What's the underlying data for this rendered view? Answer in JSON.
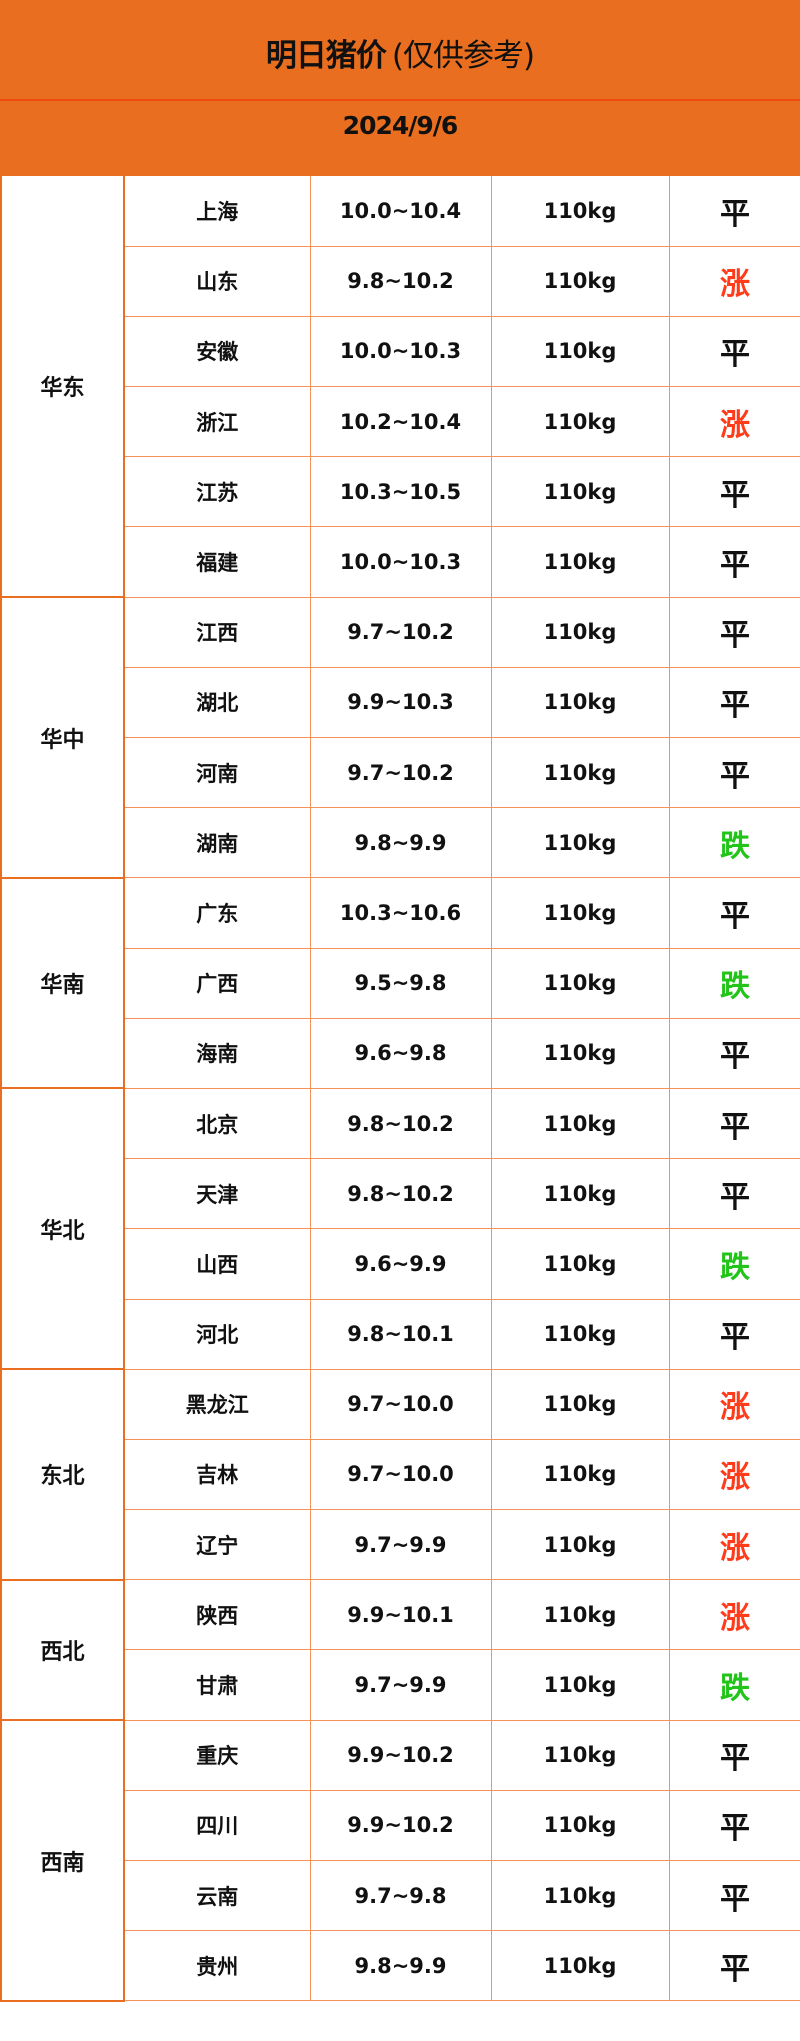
{
  "header": {
    "title": "明日猪价",
    "subtitle": "(仅供参考)",
    "date": "2024/9/6"
  },
  "colors": {
    "header_bg": "#E96E1F",
    "up": "#FF3B1A",
    "down": "#22C41A",
    "flat": "#111111",
    "grid": "#F3935A"
  },
  "regions": [
    {
      "name": "华东",
      "rows": [
        {
          "province": "上海",
          "price": "10.0~10.4",
          "weight": "110kg",
          "trend": "平"
        },
        {
          "province": "山东",
          "price": "9.8~10.2",
          "weight": "110kg",
          "trend": "涨"
        },
        {
          "province": "安徽",
          "price": "10.0~10.3",
          "weight": "110kg",
          "trend": "平"
        },
        {
          "province": "浙江",
          "price": "10.2~10.4",
          "weight": "110kg",
          "trend": "涨"
        },
        {
          "province": "江苏",
          "price": "10.3~10.5",
          "weight": "110kg",
          "trend": "平"
        },
        {
          "province": "福建",
          "price": "10.0~10.3",
          "weight": "110kg",
          "trend": "平"
        }
      ]
    },
    {
      "name": "华中",
      "rows": [
        {
          "province": "江西",
          "price": "9.7~10.2",
          "weight": "110kg",
          "trend": "平"
        },
        {
          "province": "湖北",
          "price": "9.9~10.3",
          "weight": "110kg",
          "trend": "平"
        },
        {
          "province": "河南",
          "price": "9.7~10.2",
          "weight": "110kg",
          "trend": "平"
        },
        {
          "province": "湖南",
          "price": "9.8~9.9",
          "weight": "110kg",
          "trend": "跌"
        }
      ]
    },
    {
      "name": "华南",
      "rows": [
        {
          "province": "广东",
          "price": "10.3~10.6",
          "weight": "110kg",
          "trend": "平"
        },
        {
          "province": "广西",
          "price": "9.5~9.8",
          "weight": "110kg",
          "trend": "跌"
        },
        {
          "province": "海南",
          "price": "9.6~9.8",
          "weight": "110kg",
          "trend": "平"
        }
      ]
    },
    {
      "name": "华北",
      "rows": [
        {
          "province": "北京",
          "price": "9.8~10.2",
          "weight": "110kg",
          "trend": "平"
        },
        {
          "province": "天津",
          "price": "9.8~10.2",
          "weight": "110kg",
          "trend": "平"
        },
        {
          "province": "山西",
          "price": "9.6~9.9",
          "weight": "110kg",
          "trend": "跌"
        },
        {
          "province": "河北",
          "price": "9.8~10.1",
          "weight": "110kg",
          "trend": "平"
        }
      ]
    },
    {
      "name": "东北",
      "rows": [
        {
          "province": "黑龙江",
          "price": "9.7~10.0",
          "weight": "110kg",
          "trend": "涨"
        },
        {
          "province": "吉林",
          "price": "9.7~10.0",
          "weight": "110kg",
          "trend": "涨"
        },
        {
          "province": "辽宁",
          "price": "9.7~9.9",
          "weight": "110kg",
          "trend": "涨"
        }
      ]
    },
    {
      "name": "西北",
      "rows": [
        {
          "province": "陕西",
          "price": "9.9~10.1",
          "weight": "110kg",
          "trend": "涨"
        },
        {
          "province": "甘肃",
          "price": "9.7~9.9",
          "weight": "110kg",
          "trend": "跌"
        }
      ]
    },
    {
      "name": "西南",
      "rows": [
        {
          "province": "重庆",
          "price": "9.9~10.2",
          "weight": "110kg",
          "trend": "平"
        },
        {
          "province": "四川",
          "price": "9.9~10.2",
          "weight": "110kg",
          "trend": "平"
        },
        {
          "province": "云南",
          "price": "9.7~9.8",
          "weight": "110kg",
          "trend": "平"
        },
        {
          "province": "贵州",
          "price": "9.8~9.9",
          "weight": "110kg",
          "trend": "平"
        }
      ]
    }
  ]
}
